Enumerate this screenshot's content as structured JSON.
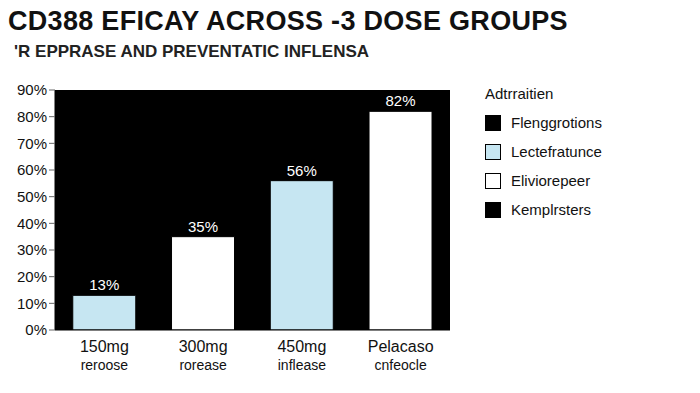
{
  "chart_data": {
    "type": "bar",
    "title": "CD388 EFICAY ACROSS -3 DOSE GROUPS",
    "subtitle": "'R EPPRASE AND PREVENTATIC INFLENSA",
    "categories": [
      "150mg\nreroose",
      "300mg\nrorease",
      "450mg\ninflease",
      "Pelacaso\ncnfeocle"
    ],
    "values": [
      13,
      35,
      56,
      82
    ],
    "value_labels": [
      "13%",
      "35%",
      "56%",
      "82%"
    ],
    "colors": [
      "#c6e6f2",
      "#ffffff",
      "#c6e6f2",
      "#ffffff"
    ],
    "ylim": [
      0,
      90
    ],
    "yticks": [
      {
        "value": 0,
        "label": "0%"
      },
      {
        "value": 10,
        "label": "10%"
      },
      {
        "value": 20,
        "label": "20%"
      },
      {
        "value": 30,
        "label": "30%"
      },
      {
        "value": 40,
        "label": "40%"
      },
      {
        "value": 50,
        "label": "50%"
      },
      {
        "value": 60,
        "label": "60%"
      },
      {
        "value": 70,
        "label": "70%"
      },
      {
        "value": 80,
        "label": "80%"
      },
      {
        "value": 90,
        "label": "90%"
      }
    ],
    "grid": false,
    "data_labels": true,
    "legend": "right",
    "legend_title": "Adtrraitien",
    "legend_entries": [
      {
        "name": "Flenggrotions",
        "color": "#000000"
      },
      {
        "name": "Lectefratunce",
        "color": "#c6e6f2"
      },
      {
        "name": "Eliviorepeer",
        "color": "#ffffff"
      },
      {
        "name": "Kemplrsters",
        "color": "#000000"
      }
    ]
  }
}
